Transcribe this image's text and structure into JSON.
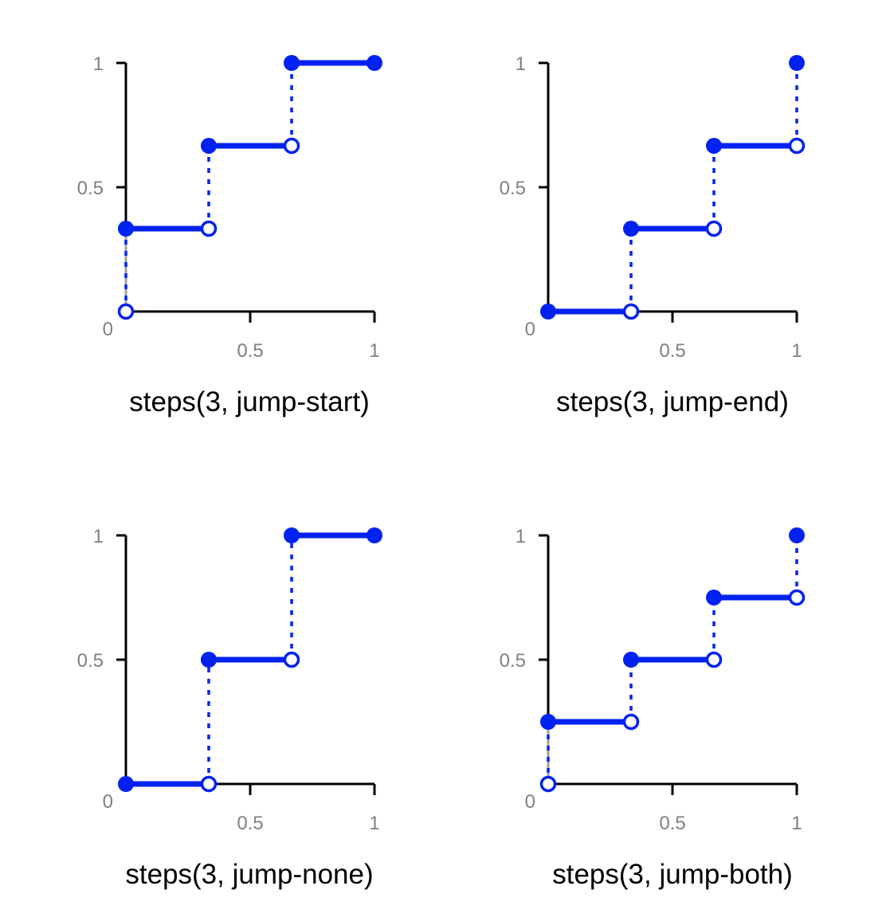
{
  "colors": {
    "step_line": "#0022f0",
    "axis": "#000000",
    "tick_label": "#808080",
    "initial_jump": "#a0a0a0"
  },
  "chart_data": [
    {
      "type": "line",
      "title": "steps(3, jump-start)",
      "xlim": [
        0,
        1
      ],
      "ylim": [
        0,
        1
      ],
      "xticks": [
        {
          "value": 0.5,
          "label": "0.5"
        },
        {
          "value": 1,
          "label": "1"
        }
      ],
      "yticks": [
        {
          "value": 0.5,
          "label": "0.5"
        },
        {
          "value": 1,
          "label": "1"
        }
      ],
      "origin_label": "0",
      "segments": [
        {
          "x": [
            0,
            0.3333
          ],
          "y": 0.3333
        },
        {
          "x": [
            0.3333,
            0.6667
          ],
          "y": 0.6667
        },
        {
          "x": [
            0.6667,
            1
          ],
          "y": 1
        }
      ],
      "jumps": [
        {
          "x": 0,
          "y": [
            0,
            0.3333
          ],
          "initial": true
        },
        {
          "x": 0.3333,
          "y": [
            0.3333,
            0.6667
          ]
        },
        {
          "x": 0.6667,
          "y": [
            0.6667,
            1
          ]
        }
      ],
      "filled_points": [
        {
          "x": 0,
          "y": 0.3333
        },
        {
          "x": 0.3333,
          "y": 0.6667
        },
        {
          "x": 0.6667,
          "y": 1
        },
        {
          "x": 1,
          "y": 1
        }
      ],
      "open_points": [
        {
          "x": 0,
          "y": 0
        },
        {
          "x": 0.3333,
          "y": 0.3333
        },
        {
          "x": 0.6667,
          "y": 0.6667
        }
      ]
    },
    {
      "type": "line",
      "title": "steps(3, jump-end)",
      "xlim": [
        0,
        1
      ],
      "ylim": [
        0,
        1
      ],
      "xticks": [
        {
          "value": 0.5,
          "label": "0.5"
        },
        {
          "value": 1,
          "label": "1"
        }
      ],
      "yticks": [
        {
          "value": 0.5,
          "label": "0.5"
        },
        {
          "value": 1,
          "label": "1"
        }
      ],
      "origin_label": "0",
      "segments": [
        {
          "x": [
            0,
            0.3333
          ],
          "y": 0
        },
        {
          "x": [
            0.3333,
            0.6667
          ],
          "y": 0.3333
        },
        {
          "x": [
            0.6667,
            1
          ],
          "y": 0.6667
        }
      ],
      "jumps": [
        {
          "x": 0.3333,
          "y": [
            0,
            0.3333
          ]
        },
        {
          "x": 0.6667,
          "y": [
            0.3333,
            0.6667
          ]
        },
        {
          "x": 1,
          "y": [
            0.6667,
            1
          ]
        }
      ],
      "filled_points": [
        {
          "x": 0,
          "y": 0
        },
        {
          "x": 0.3333,
          "y": 0.3333
        },
        {
          "x": 0.6667,
          "y": 0.6667
        },
        {
          "x": 1,
          "y": 1
        }
      ],
      "open_points": [
        {
          "x": 0.3333,
          "y": 0
        },
        {
          "x": 0.6667,
          "y": 0.3333
        },
        {
          "x": 1,
          "y": 0.6667
        }
      ]
    },
    {
      "type": "line",
      "title": "steps(3, jump-none)",
      "xlim": [
        0,
        1
      ],
      "ylim": [
        0,
        1
      ],
      "xticks": [
        {
          "value": 0.5,
          "label": "0.5"
        },
        {
          "value": 1,
          "label": "1"
        }
      ],
      "yticks": [
        {
          "value": 0.5,
          "label": "0.5"
        },
        {
          "value": 1,
          "label": "1"
        }
      ],
      "origin_label": "0",
      "segments": [
        {
          "x": [
            0,
            0.3333
          ],
          "y": 0
        },
        {
          "x": [
            0.3333,
            0.6667
          ],
          "y": 0.5
        },
        {
          "x": [
            0.6667,
            1
          ],
          "y": 1
        }
      ],
      "jumps": [
        {
          "x": 0.3333,
          "y": [
            0,
            0.5
          ]
        },
        {
          "x": 0.6667,
          "y": [
            0.5,
            1
          ]
        }
      ],
      "filled_points": [
        {
          "x": 0,
          "y": 0
        },
        {
          "x": 0.3333,
          "y": 0.5
        },
        {
          "x": 0.6667,
          "y": 1
        },
        {
          "x": 1,
          "y": 1
        }
      ],
      "open_points": [
        {
          "x": 0.3333,
          "y": 0
        },
        {
          "x": 0.6667,
          "y": 0.5
        }
      ]
    },
    {
      "type": "line",
      "title": "steps(3, jump-both)",
      "xlim": [
        0,
        1
      ],
      "ylim": [
        0,
        1
      ],
      "xticks": [
        {
          "value": 0.5,
          "label": "0.5"
        },
        {
          "value": 1,
          "label": "1"
        }
      ],
      "yticks": [
        {
          "value": 0.5,
          "label": "0.5"
        },
        {
          "value": 1,
          "label": "1"
        }
      ],
      "origin_label": "0",
      "segments": [
        {
          "x": [
            0,
            0.3333
          ],
          "y": 0.25
        },
        {
          "x": [
            0.3333,
            0.6667
          ],
          "y": 0.5
        },
        {
          "x": [
            0.6667,
            1
          ],
          "y": 0.75
        }
      ],
      "jumps": [
        {
          "x": 0,
          "y": [
            0,
            0.25
          ],
          "initial": true
        },
        {
          "x": 0.3333,
          "y": [
            0.25,
            0.5
          ]
        },
        {
          "x": 0.6667,
          "y": [
            0.5,
            0.75
          ]
        },
        {
          "x": 1,
          "y": [
            0.75,
            1
          ]
        }
      ],
      "filled_points": [
        {
          "x": 0,
          "y": 0.25
        },
        {
          "x": 0.3333,
          "y": 0.5
        },
        {
          "x": 0.6667,
          "y": 0.75
        },
        {
          "x": 1,
          "y": 1
        }
      ],
      "open_points": [
        {
          "x": 0,
          "y": 0
        },
        {
          "x": 0.3333,
          "y": 0.25
        },
        {
          "x": 0.6667,
          "y": 0.5
        },
        {
          "x": 1,
          "y": 0.75
        }
      ]
    }
  ]
}
